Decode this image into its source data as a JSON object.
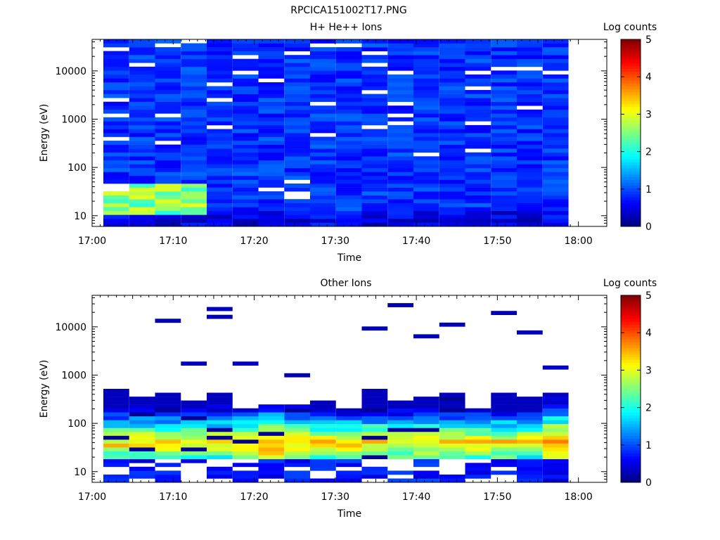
{
  "page_title": "RPCICA151002T17.PNG",
  "colorbar": {
    "label": "Log counts",
    "ticks": [
      "0",
      "1",
      "2",
      "3",
      "4",
      "5"
    ]
  },
  "chart_data": [
    {
      "type": "heatmap",
      "title": "H+ He++ Ions",
      "xlabel": "Time",
      "ylabel": "Energy (eV)",
      "x_ticks": [
        "17:00",
        "17:10",
        "17:20",
        "17:30",
        "17:40",
        "17:50",
        "18:00"
      ],
      "y_ticks": [
        "10",
        "100",
        "1000",
        "10000"
      ],
      "yscale": "log",
      "ylim": [
        6,
        45000
      ],
      "colorbar": {
        "label": "Log counts",
        "range": [
          0,
          5
        ]
      },
      "profile": "hplus"
    },
    {
      "type": "heatmap",
      "title": "Other Ions",
      "xlabel": "Time",
      "ylabel": "Energy (eV)",
      "x_ticks": [
        "17:00",
        "17:10",
        "17:20",
        "17:30",
        "17:40",
        "17:50",
        "18:00"
      ],
      "y_ticks": [
        "10",
        "100",
        "1000",
        "10000"
      ],
      "yscale": "log",
      "ylim": [
        6,
        45000
      ],
      "colorbar": {
        "label": "Log counts",
        "range": [
          0,
          5
        ]
      },
      "profile": "other"
    }
  ]
}
